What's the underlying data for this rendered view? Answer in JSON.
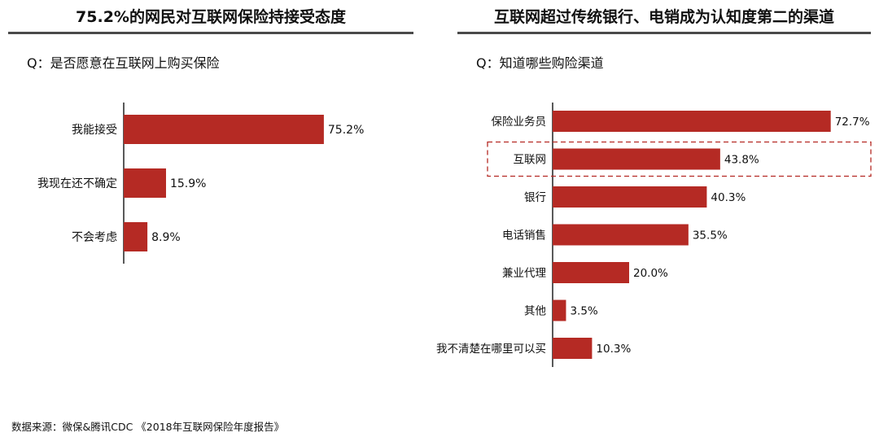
{
  "left_panel": {
    "title": "75.2%的网民对互联网保险持接受态度",
    "question": "Q：是否愿意在互联网上购买保险"
  },
  "right_panel": {
    "title": "互联网超过传统银行、电销成为认知度第二的渠道",
    "question": "Q：知道哪些购险渠道"
  },
  "source": "数据来源：微保&腾讯CDC 《2018年互联网保险年度报告》",
  "colors": {
    "bar": "#b52a24",
    "highlight_box": "#b52a24",
    "axis": "#222222",
    "title_rule": "#4a4a4a"
  },
  "chart_data": [
    {
      "type": "bar",
      "orientation": "horizontal",
      "categories": [
        "我能接受",
        "我现在还不确定",
        "不会考虑"
      ],
      "values": [
        75.2,
        15.9,
        8.9
      ],
      "value_labels": [
        "75.2%",
        "15.9%",
        "8.9%"
      ],
      "unit": "%",
      "xlim": [
        0,
        100
      ]
    },
    {
      "type": "bar",
      "orientation": "horizontal",
      "categories": [
        "保险业务员",
        "互联网",
        "银行",
        "电话销售",
        "兼业代理",
        "其他",
        "我不清楚在哪里可以买"
      ],
      "values": [
        72.7,
        43.8,
        40.3,
        35.5,
        20.0,
        3.5,
        10.3
      ],
      "value_labels": [
        "72.7%",
        "43.8%",
        "40.3%",
        "35.5%",
        "20.0%",
        "3.5%",
        "10.3%"
      ],
      "highlighted_category": "互联网",
      "unit": "%",
      "xlim": [
        0,
        100
      ]
    }
  ]
}
